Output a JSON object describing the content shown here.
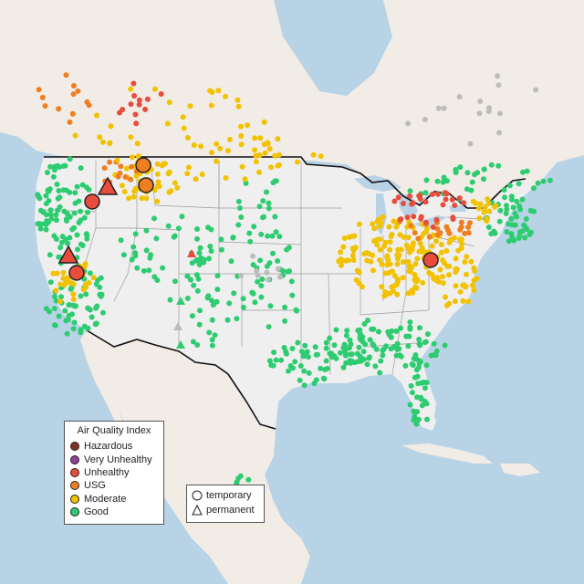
{
  "legend": {
    "title": "Air Quality Index",
    "items": [
      {
        "label": "Hazardous",
        "color": "#7e3324"
      },
      {
        "label": "Very Unhealthy",
        "color": "#8f3f97"
      },
      {
        "label": "Unhealthy",
        "color": "#e84c3d"
      },
      {
        "label": "USG",
        "color": "#ef7e22"
      },
      {
        "label": "Moderate",
        "color": "#f2c200"
      },
      {
        "label": "Good",
        "color": "#2ecc71"
      }
    ]
  },
  "shape_legend": {
    "temporary": "temporary",
    "permanent": "permanent"
  },
  "colors": {
    "water": "#b9d3e6",
    "land": "#f2efe9",
    "usa": "#efefef",
    "no_data": "#bcbcbc"
  }
}
